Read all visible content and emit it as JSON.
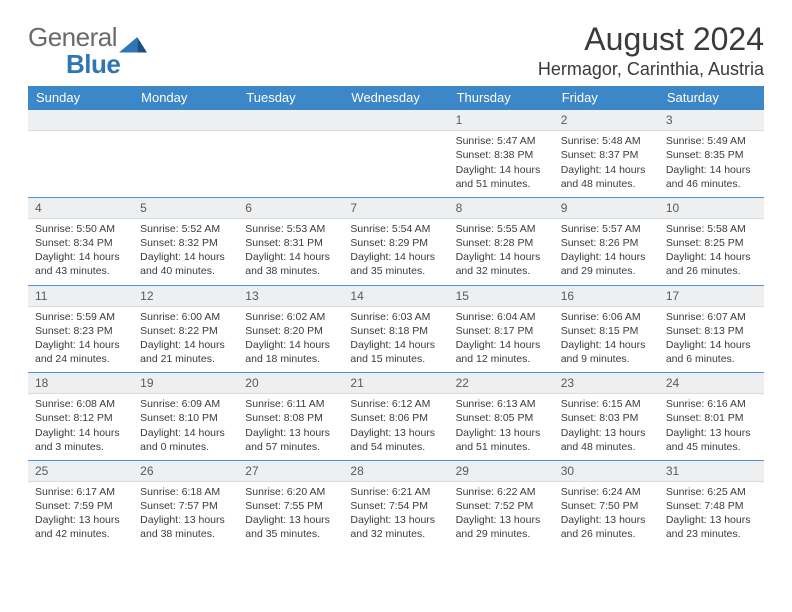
{
  "logo": {
    "word1": "General",
    "word2": "Blue"
  },
  "title": "August 2024",
  "location": "Hermagor, Carinthia, Austria",
  "style": {
    "header_bg": "#3b87c8",
    "header_fg": "#ffffff",
    "daynum_bg": "#edeff1",
    "daynum_fg": "#5a5a5a",
    "body_fg": "#3b3b3b",
    "sep_color": "#3b87c8",
    "page_bg": "#ffffff",
    "title_fg": "#3a3a3a",
    "logo_gray": "#6a6a6a",
    "logo_blue": "#2f76b6",
    "font_family": "Arial",
    "title_fontsize": 32,
    "location_fontsize": 18,
    "header_fontsize": 13,
    "daynum_fontsize": 12,
    "content_fontsize": 10.5
  },
  "days_of_week": [
    "Sunday",
    "Monday",
    "Tuesday",
    "Wednesday",
    "Thursday",
    "Friday",
    "Saturday"
  ],
  "weeks": [
    [
      {
        "n": "",
        "sr": "",
        "ss": "",
        "dl": ""
      },
      {
        "n": "",
        "sr": "",
        "ss": "",
        "dl": ""
      },
      {
        "n": "",
        "sr": "",
        "ss": "",
        "dl": ""
      },
      {
        "n": "",
        "sr": "",
        "ss": "",
        "dl": ""
      },
      {
        "n": "1",
        "sr": "Sunrise: 5:47 AM",
        "ss": "Sunset: 8:38 PM",
        "dl": "Daylight: 14 hours and 51 minutes."
      },
      {
        "n": "2",
        "sr": "Sunrise: 5:48 AM",
        "ss": "Sunset: 8:37 PM",
        "dl": "Daylight: 14 hours and 48 minutes."
      },
      {
        "n": "3",
        "sr": "Sunrise: 5:49 AM",
        "ss": "Sunset: 8:35 PM",
        "dl": "Daylight: 14 hours and 46 minutes."
      }
    ],
    [
      {
        "n": "4",
        "sr": "Sunrise: 5:50 AM",
        "ss": "Sunset: 8:34 PM",
        "dl": "Daylight: 14 hours and 43 minutes."
      },
      {
        "n": "5",
        "sr": "Sunrise: 5:52 AM",
        "ss": "Sunset: 8:32 PM",
        "dl": "Daylight: 14 hours and 40 minutes."
      },
      {
        "n": "6",
        "sr": "Sunrise: 5:53 AM",
        "ss": "Sunset: 8:31 PM",
        "dl": "Daylight: 14 hours and 38 minutes."
      },
      {
        "n": "7",
        "sr": "Sunrise: 5:54 AM",
        "ss": "Sunset: 8:29 PM",
        "dl": "Daylight: 14 hours and 35 minutes."
      },
      {
        "n": "8",
        "sr": "Sunrise: 5:55 AM",
        "ss": "Sunset: 8:28 PM",
        "dl": "Daylight: 14 hours and 32 minutes."
      },
      {
        "n": "9",
        "sr": "Sunrise: 5:57 AM",
        "ss": "Sunset: 8:26 PM",
        "dl": "Daylight: 14 hours and 29 minutes."
      },
      {
        "n": "10",
        "sr": "Sunrise: 5:58 AM",
        "ss": "Sunset: 8:25 PM",
        "dl": "Daylight: 14 hours and 26 minutes."
      }
    ],
    [
      {
        "n": "11",
        "sr": "Sunrise: 5:59 AM",
        "ss": "Sunset: 8:23 PM",
        "dl": "Daylight: 14 hours and 24 minutes."
      },
      {
        "n": "12",
        "sr": "Sunrise: 6:00 AM",
        "ss": "Sunset: 8:22 PM",
        "dl": "Daylight: 14 hours and 21 minutes."
      },
      {
        "n": "13",
        "sr": "Sunrise: 6:02 AM",
        "ss": "Sunset: 8:20 PM",
        "dl": "Daylight: 14 hours and 18 minutes."
      },
      {
        "n": "14",
        "sr": "Sunrise: 6:03 AM",
        "ss": "Sunset: 8:18 PM",
        "dl": "Daylight: 14 hours and 15 minutes."
      },
      {
        "n": "15",
        "sr": "Sunrise: 6:04 AM",
        "ss": "Sunset: 8:17 PM",
        "dl": "Daylight: 14 hours and 12 minutes."
      },
      {
        "n": "16",
        "sr": "Sunrise: 6:06 AM",
        "ss": "Sunset: 8:15 PM",
        "dl": "Daylight: 14 hours and 9 minutes."
      },
      {
        "n": "17",
        "sr": "Sunrise: 6:07 AM",
        "ss": "Sunset: 8:13 PM",
        "dl": "Daylight: 14 hours and 6 minutes."
      }
    ],
    [
      {
        "n": "18",
        "sr": "Sunrise: 6:08 AM",
        "ss": "Sunset: 8:12 PM",
        "dl": "Daylight: 14 hours and 3 minutes."
      },
      {
        "n": "19",
        "sr": "Sunrise: 6:09 AM",
        "ss": "Sunset: 8:10 PM",
        "dl": "Daylight: 14 hours and 0 minutes."
      },
      {
        "n": "20",
        "sr": "Sunrise: 6:11 AM",
        "ss": "Sunset: 8:08 PM",
        "dl": "Daylight: 13 hours and 57 minutes."
      },
      {
        "n": "21",
        "sr": "Sunrise: 6:12 AM",
        "ss": "Sunset: 8:06 PM",
        "dl": "Daylight: 13 hours and 54 minutes."
      },
      {
        "n": "22",
        "sr": "Sunrise: 6:13 AM",
        "ss": "Sunset: 8:05 PM",
        "dl": "Daylight: 13 hours and 51 minutes."
      },
      {
        "n": "23",
        "sr": "Sunrise: 6:15 AM",
        "ss": "Sunset: 8:03 PM",
        "dl": "Daylight: 13 hours and 48 minutes."
      },
      {
        "n": "24",
        "sr": "Sunrise: 6:16 AM",
        "ss": "Sunset: 8:01 PM",
        "dl": "Daylight: 13 hours and 45 minutes."
      }
    ],
    [
      {
        "n": "25",
        "sr": "Sunrise: 6:17 AM",
        "ss": "Sunset: 7:59 PM",
        "dl": "Daylight: 13 hours and 42 minutes."
      },
      {
        "n": "26",
        "sr": "Sunrise: 6:18 AM",
        "ss": "Sunset: 7:57 PM",
        "dl": "Daylight: 13 hours and 38 minutes."
      },
      {
        "n": "27",
        "sr": "Sunrise: 6:20 AM",
        "ss": "Sunset: 7:55 PM",
        "dl": "Daylight: 13 hours and 35 minutes."
      },
      {
        "n": "28",
        "sr": "Sunrise: 6:21 AM",
        "ss": "Sunset: 7:54 PM",
        "dl": "Daylight: 13 hours and 32 minutes."
      },
      {
        "n": "29",
        "sr": "Sunrise: 6:22 AM",
        "ss": "Sunset: 7:52 PM",
        "dl": "Daylight: 13 hours and 29 minutes."
      },
      {
        "n": "30",
        "sr": "Sunrise: 6:24 AM",
        "ss": "Sunset: 7:50 PM",
        "dl": "Daylight: 13 hours and 26 minutes."
      },
      {
        "n": "31",
        "sr": "Sunrise: 6:25 AM",
        "ss": "Sunset: 7:48 PM",
        "dl": "Daylight: 13 hours and 23 minutes."
      }
    ]
  ]
}
